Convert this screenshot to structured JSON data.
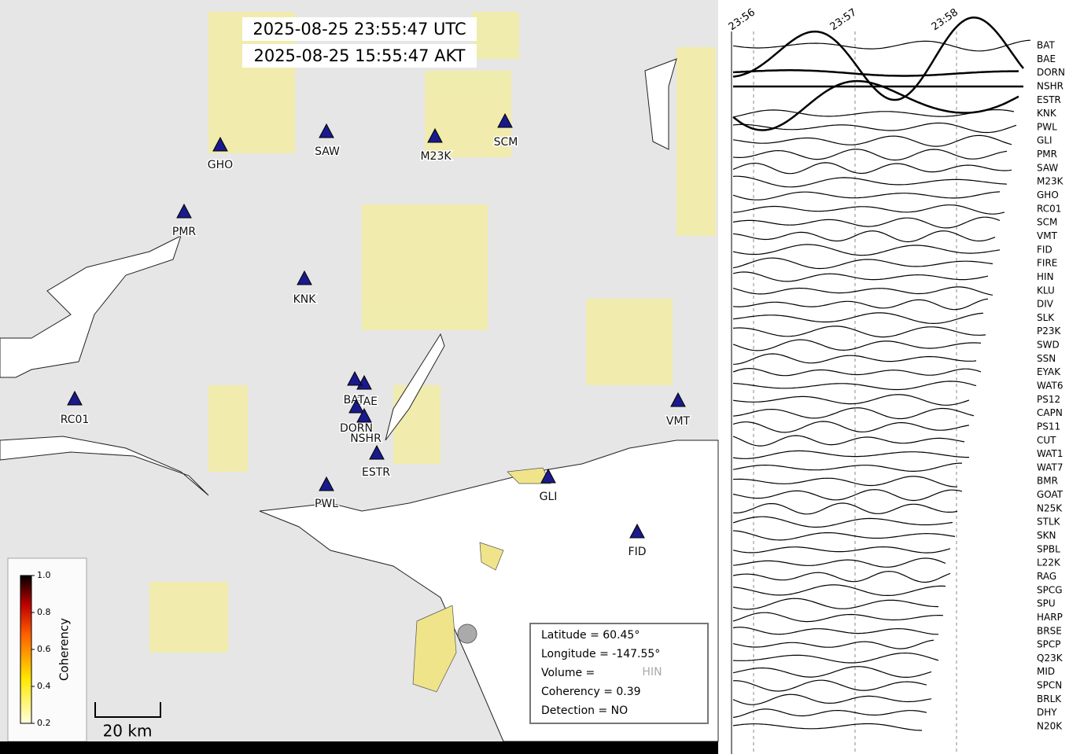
{
  "timestamps": [
    "2025-08-25 23:55:47 UTC",
    "2025-08-25 15:55:47 AKT"
  ],
  "map_stations": [
    "GHO",
    "SAW",
    "M23K",
    "SCM",
    "PMR",
    "KNK",
    "RC01",
    "BAE",
    "BAT",
    "DORN",
    "NSHR",
    "ESTR",
    "PWL",
    "GLI",
    "VMT",
    "FID"
  ],
  "colorbar": {
    "label": "Coherency",
    "lim": [
      0.2,
      1.0
    ],
    "ticks": [
      0.2,
      0.4,
      0.6,
      0.8,
      {
        "value": 1.0,
        "label": "1.0"
      }
    ]
  },
  "scale_bar": "20 km",
  "info_box": [
    "Latitude = 60.45°",
    "Longitude = -147.55°",
    "Volume =",
    "Coherency = 0.39",
    "Detection = NO"
  ],
  "info_station": "HIN",
  "seismogram": {
    "time_ticks": [
      "23:56",
      "23:57",
      "23:58"
    ],
    "stations": [
      "BAT",
      "BAE",
      "DORN",
      "NSHR",
      "ESTR",
      "KNK",
      "PWL",
      "GLI",
      "PMR",
      "SAW",
      "M23K",
      "GHO",
      "RC01",
      "SCM",
      "VMT",
      "FID",
      "FIRE",
      "HIN",
      "KLU",
      "DIV",
      "SLK",
      "P23K",
      "SWD",
      "SSN",
      "EYAK",
      "WAT6",
      "PS12",
      "CAPN",
      "PS11",
      "CUT",
      "WAT1",
      "WAT7",
      "BMR",
      "GOAT",
      "N25K",
      "STLK",
      "SKN",
      "SPBL",
      "L22K",
      "RAG",
      "SPCG",
      "SPU",
      "HARP",
      "BRSE",
      "SPCP",
      "Q23K",
      "MID",
      "SPCN",
      "BRLK",
      "DHY",
      "N20K"
    ]
  }
}
